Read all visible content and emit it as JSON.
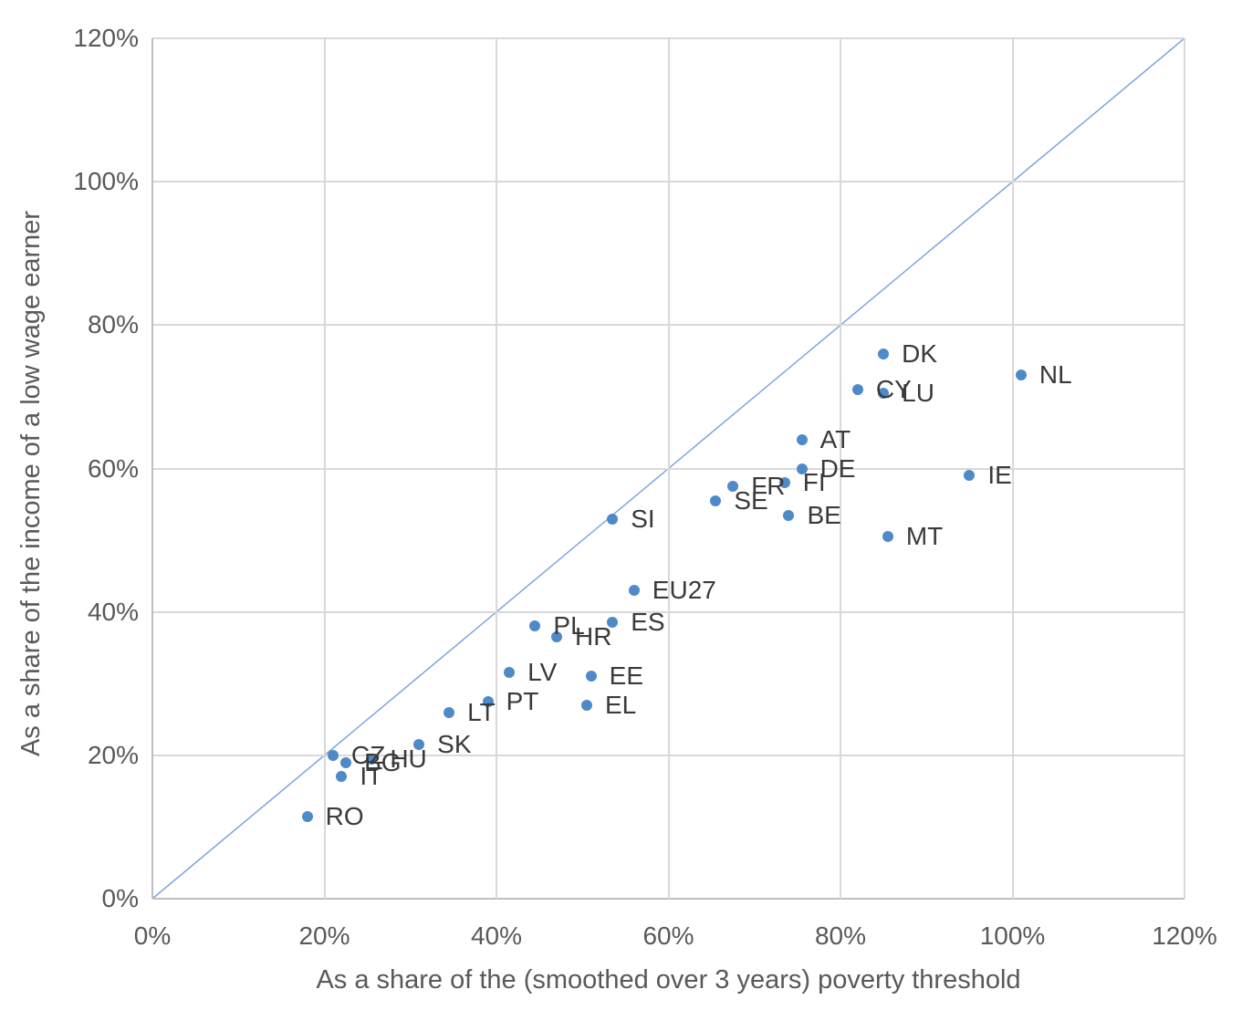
{
  "chart_data": {
    "type": "scatter",
    "title": "",
    "xlabel": "As a share of the (smoothed over 3 years) poverty threshold",
    "ylabel": "As a share of the income of a low wage earner",
    "units": "percent",
    "xlim": [
      0,
      120
    ],
    "ylim": [
      0,
      120
    ],
    "x_tick_labels": [
      "0%",
      "20%",
      "40%",
      "60%",
      "80%",
      "100%",
      "120%"
    ],
    "y_tick_labels": [
      "0%",
      "20%",
      "40%",
      "60%",
      "80%",
      "100%",
      "120%"
    ],
    "grid": "on",
    "legend": "none",
    "reference_line": {
      "name": "identity-line",
      "x": [
        0,
        120
      ],
      "y": [
        0,
        120
      ]
    },
    "series": [
      {
        "name": "EU countries",
        "points": [
          {
            "label": "RO",
            "x": 18,
            "y": 11.5
          },
          {
            "label": "IT",
            "x": 22,
            "y": 17
          },
          {
            "label": "CZ",
            "x": 21,
            "y": 20
          },
          {
            "label": "BG",
            "x": 22.5,
            "y": 19
          },
          {
            "label": "HU",
            "x": 25.5,
            "y": 19.5
          },
          {
            "label": "SK",
            "x": 31,
            "y": 21.5
          },
          {
            "label": "LT",
            "x": 34.5,
            "y": 26
          },
          {
            "label": "PT",
            "x": 39,
            "y": 27.5
          },
          {
            "label": "LV",
            "x": 41.5,
            "y": 31.5
          },
          {
            "label": "EL",
            "x": 50.5,
            "y": 27
          },
          {
            "label": "EE",
            "x": 51,
            "y": 31
          },
          {
            "label": "HR",
            "x": 47,
            "y": 36.5
          },
          {
            "label": "PL",
            "x": 44.5,
            "y": 38
          },
          {
            "label": "ES",
            "x": 53.5,
            "y": 38.5
          },
          {
            "label": "EU27",
            "x": 56,
            "y": 43
          },
          {
            "label": "SI",
            "x": 53.5,
            "y": 53
          },
          {
            "label": "SE",
            "x": 65.5,
            "y": 55.5
          },
          {
            "label": "FR",
            "x": 67.5,
            "y": 57.5
          },
          {
            "label": "BE",
            "x": 74,
            "y": 53.5
          },
          {
            "label": "FI",
            "x": 73.5,
            "y": 58
          },
          {
            "label": "DE",
            "x": 75.5,
            "y": 60
          },
          {
            "label": "AT",
            "x": 75.5,
            "y": 64
          },
          {
            "label": "MT",
            "x": 85.5,
            "y": 50.5
          },
          {
            "label": "CY",
            "x": 82,
            "y": 71
          },
          {
            "label": "LU",
            "x": 85,
            "y": 70.5
          },
          {
            "label": "DK",
            "x": 85,
            "y": 76
          },
          {
            "label": "IE",
            "x": 95,
            "y": 59
          },
          {
            "label": "NL",
            "x": 101,
            "y": 73
          }
        ]
      }
    ],
    "colors": {
      "marker": "#4f8ac8",
      "reference_line": "#7ea6d9",
      "gridline": "#d9d9d9",
      "axis_line": "#bfbfbf",
      "tick_text": "#595959",
      "axis_title_text": "#595959",
      "point_label_text": "#3a3a3a"
    }
  }
}
